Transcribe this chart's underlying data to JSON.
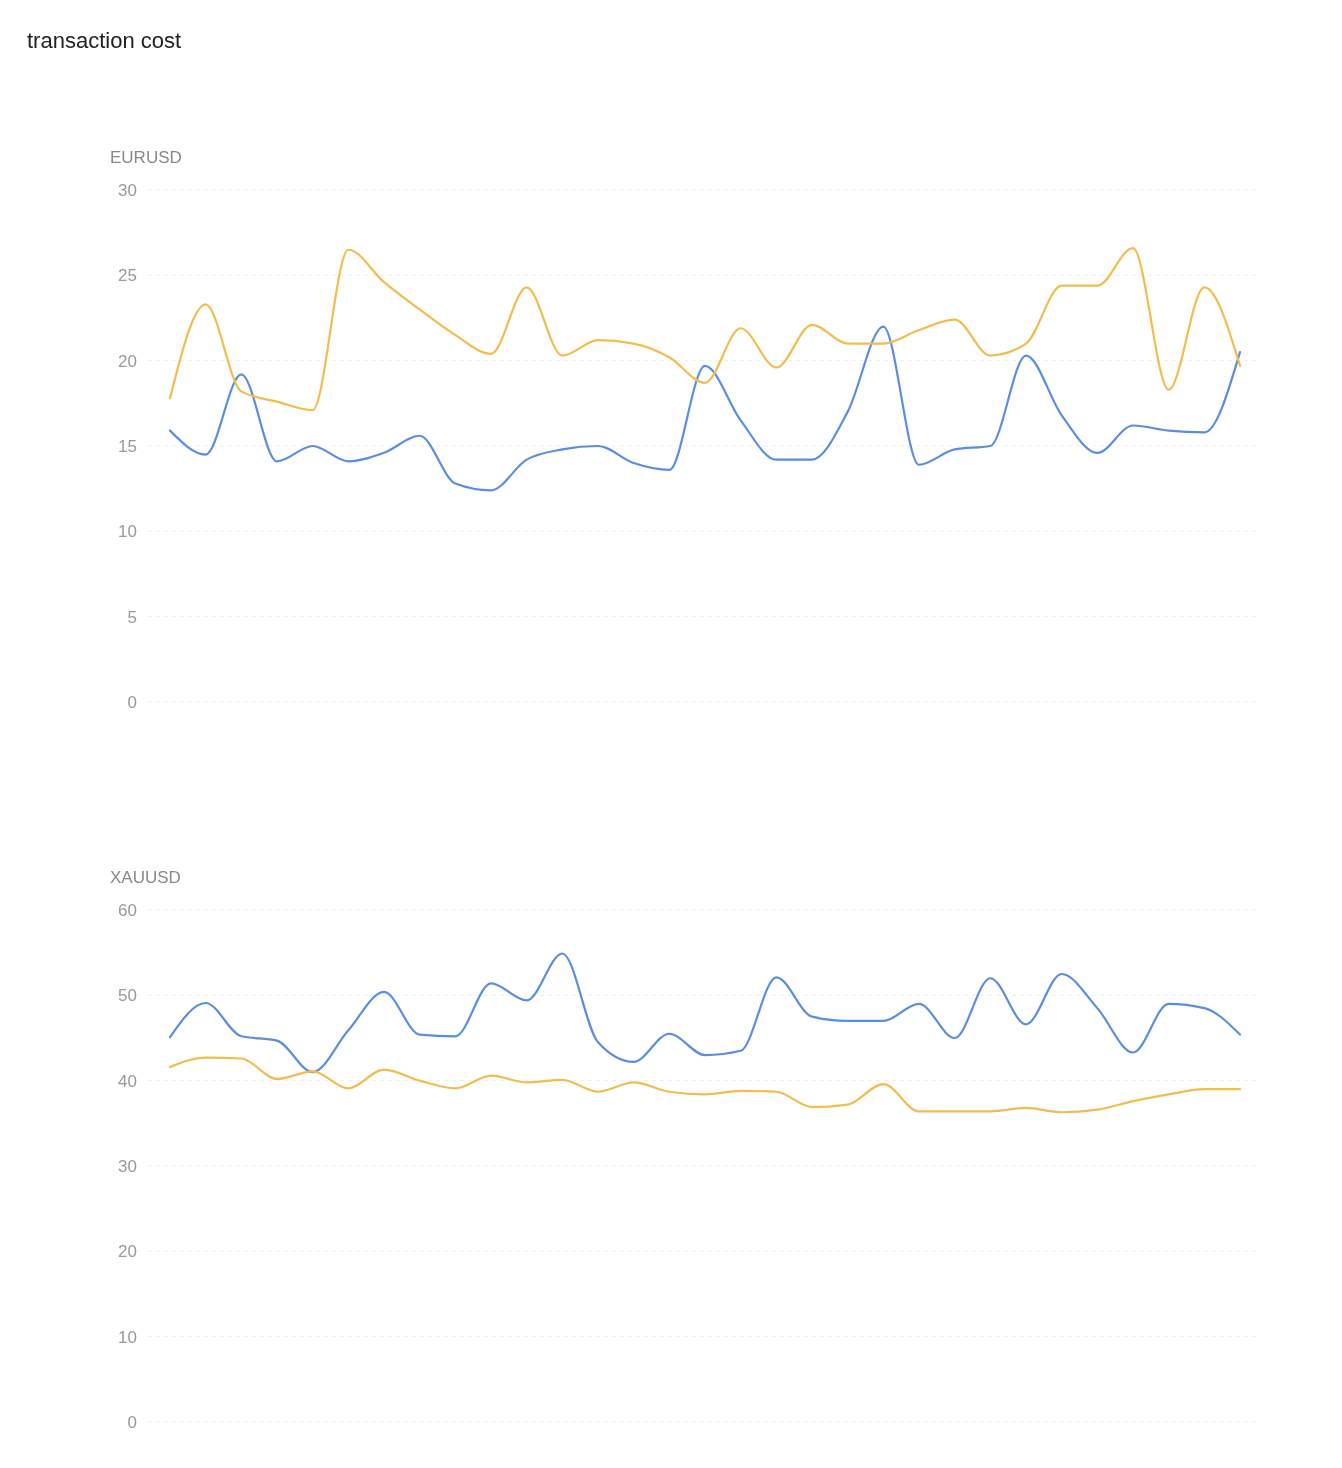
{
  "chart_data": [
    {
      "type": "line",
      "title": "transaction cost",
      "ylabel": "EURUSD",
      "categories": [
        null,
        null,
        null,
        null,
        null,
        null,
        null,
        null,
        null,
        null,
        null,
        null,
        null,
        null,
        null,
        null,
        null,
        null,
        null,
        null,
        null,
        null,
        null,
        null,
        null,
        null,
        null,
        null,
        null,
        null,
        null
      ],
      "ylim": [
        0,
        30
      ],
      "yticks": [
        0,
        5,
        10,
        15,
        20,
        25,
        30
      ],
      "grid": "y",
      "tick_labels": "y",
      "marker": "none",
      "line_style": "solid",
      "series": [
        {
          "color": "#5b8ee0",
          "values": [
            15.9,
            14.5,
            19.2,
            14.1,
            15.0,
            14.1,
            14.6,
            15.6,
            12.8,
            12.4,
            14.2,
            14.8,
            15.0,
            14.0,
            13.6,
            19.7,
            16.5,
            14.2,
            14.2,
            17.0,
            22.0,
            13.9,
            14.8,
            15.0,
            20.3,
            16.8,
            14.6,
            16.2,
            15.9,
            15.8,
            20.5
          ]
        },
        {
          "color": "#f2bd4e",
          "values": [
            17.8,
            23.3,
            18.2,
            17.6,
            17.1,
            26.5,
            24.6,
            23.0,
            21.5,
            20.4,
            24.3,
            20.3,
            21.2,
            21.0,
            20.2,
            18.7,
            21.9,
            19.6,
            22.1,
            21.0,
            21.0,
            21.8,
            22.4,
            20.3,
            21.0,
            24.4,
            24.4,
            26.6,
            18.3,
            24.3,
            19.7
          ]
        }
      ]
    },
    {
      "type": "line",
      "ylabel": "XAUUSD",
      "categories": [
        null,
        null,
        null,
        null,
        null,
        null,
        null,
        null,
        null,
        null,
        null,
        null,
        null,
        null,
        null,
        null,
        null,
        null,
        null,
        null,
        null,
        null,
        null,
        null,
        null,
        null,
        null,
        null,
        null,
        null,
        null
      ],
      "ylim": [
        0,
        60
      ],
      "yticks": [
        0,
        10,
        20,
        30,
        40,
        50,
        60
      ],
      "grid": "y",
      "tick_labels": "y",
      "marker": "none",
      "line_style": "solid",
      "series": [
        {
          "color": "#5b8ee0",
          "values": [
            45.1,
            49.1,
            45.2,
            44.7,
            41.0,
            45.9,
            50.4,
            45.4,
            45.2,
            51.4,
            49.4,
            54.9,
            44.5,
            42.2,
            45.5,
            43.0,
            43.5,
            52.1,
            47.5,
            47.0,
            47.0,
            49.0,
            45.0,
            52.0,
            46.6,
            52.5,
            48.5,
            43.3,
            49.0,
            48.5,
            45.4
          ]
        },
        {
          "color": "#f2bd4e",
          "values": [
            41.6,
            42.7,
            42.6,
            40.2,
            41.1,
            39.1,
            41.3,
            40.0,
            39.1,
            40.6,
            39.8,
            40.1,
            38.7,
            39.8,
            38.7,
            38.4,
            38.8,
            38.7,
            36.9,
            37.2,
            39.6,
            36.4,
            36.4,
            36.4,
            36.8,
            36.3,
            36.6,
            37.6,
            38.4,
            39.0,
            39.0
          ]
        }
      ]
    }
  ]
}
